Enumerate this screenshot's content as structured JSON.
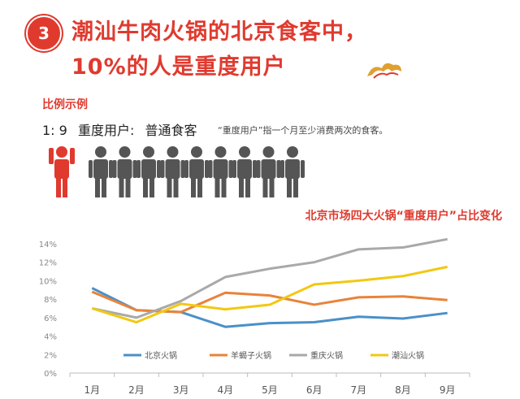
{
  "header": {
    "badge": "3",
    "title_line1": "潮汕牛肉火锅的北京食客中，",
    "title_line2": "10%的人是重度用户"
  },
  "ratio_section": {
    "subtitle": "比例示例",
    "ratio": "1:  9",
    "heavy_label": "重度用户:",
    "normal_label": "普通食客",
    "note": "“重度用户”指一个月至少消费两次的食客。",
    "heavy_count": 1,
    "normal_count": 9,
    "colors": {
      "heavy": "#e03a2f",
      "normal": "#555555"
    }
  },
  "chart_data": {
    "type": "line",
    "title": "北京市场四大火锅“重度用户”占比变化",
    "categories": [
      "1月",
      "2月",
      "3月",
      "4月",
      "5月",
      "6月",
      "7月",
      "8月",
      "9月"
    ],
    "y_ticks": [
      "0%",
      "2%",
      "4%",
      "6%",
      "8%",
      "10%",
      "12%",
      "14%"
    ],
    "ylim": [
      0,
      14
    ],
    "grid": false,
    "legend_position": "bottom",
    "series": [
      {
        "name": "北京火锅",
        "color": "#4a90c8",
        "values": [
          9.2,
          6.8,
          6.6,
          5.0,
          5.4,
          5.5,
          6.1,
          5.9,
          6.5
        ]
      },
      {
        "name": "羊蝎子火锅",
        "color": "#e8833a",
        "values": [
          8.8,
          6.8,
          6.6,
          8.7,
          8.4,
          7.4,
          8.2,
          8.3,
          7.9
        ]
      },
      {
        "name": "重庆火锅",
        "color": "#a9a9a9",
        "values": [
          7.0,
          6.0,
          7.8,
          10.4,
          11.3,
          12.0,
          13.4,
          13.6,
          14.5
        ]
      },
      {
        "name": "潮汕火锅",
        "color": "#f2c811",
        "values": [
          7.0,
          5.5,
          7.5,
          6.9,
          7.4,
          9.6,
          10.0,
          10.5,
          11.5
        ]
      }
    ]
  }
}
